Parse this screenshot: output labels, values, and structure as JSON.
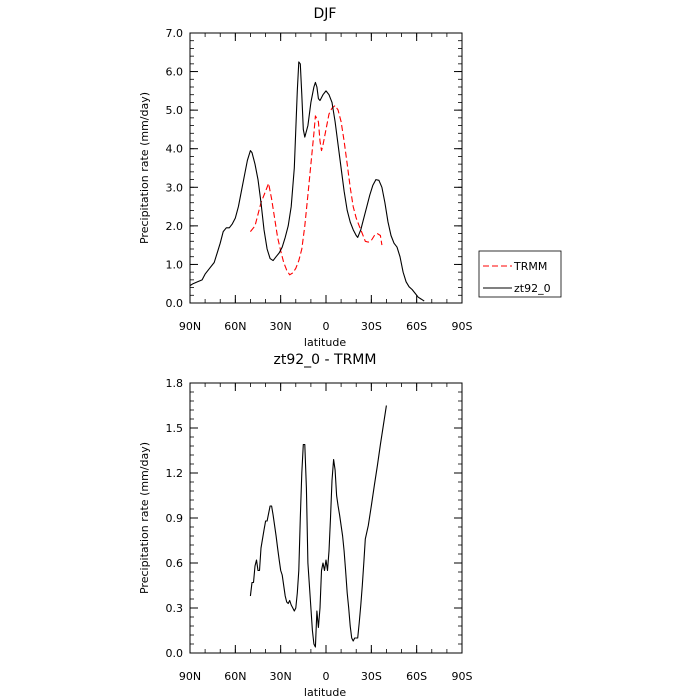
{
  "chart_data": [
    {
      "type": "line",
      "title": "DJF",
      "xlabel": "latitude",
      "ylabel": "Precipitation rate (mm/day)",
      "xlim": [
        90,
        -90
      ],
      "ylim": [
        0,
        7
      ],
      "x_ticks": [
        90,
        60,
        30,
        0,
        -30,
        -60,
        -90
      ],
      "x_tick_labels": [
        "90N",
        "60N",
        "30N",
        "0",
        "30S",
        "60S",
        "90S"
      ],
      "y_ticks": [
        0,
        1,
        2,
        3,
        4,
        5,
        6,
        7
      ],
      "y_tick_labels": [
        "0.0",
        "1.0",
        "2.0",
        "3.0",
        "4.0",
        "5.0",
        "6.0",
        "7.0"
      ],
      "legend": {
        "placement": "right",
        "entries": [
          "TRMM",
          "zt92_0"
        ]
      },
      "series": [
        {
          "name": "TRMM",
          "color": "#ff0000",
          "dash": "dashed",
          "points": [
            [
              50,
              1.85
            ],
            [
              47,
              2.0
            ],
            [
              45,
              2.3
            ],
            [
              43,
              2.6
            ],
            [
              40,
              2.9
            ],
            [
              38,
              3.1
            ],
            [
              36,
              2.7
            ],
            [
              34,
              2.2
            ],
            [
              32,
              1.7
            ],
            [
              30,
              1.35
            ],
            [
              28,
              1.05
            ],
            [
              26,
              0.85
            ],
            [
              24,
              0.73
            ],
            [
              22,
              0.78
            ],
            [
              20,
              0.9
            ],
            [
              18,
              1.1
            ],
            [
              16,
              1.4
            ],
            [
              14,
              2.0
            ],
            [
              12,
              2.8
            ],
            [
              10,
              3.6
            ],
            [
              8,
              4.4
            ],
            [
              7,
              4.85
            ],
            [
              5,
              4.7
            ],
            [
              4,
              4.2
            ],
            [
              3,
              3.95
            ],
            [
              2,
              4.1
            ],
            [
              0,
              4.5
            ],
            [
              -2,
              4.9
            ],
            [
              -4,
              5.05
            ],
            [
              -6,
              5.12
            ],
            [
              -8,
              5.0
            ],
            [
              -10,
              4.7
            ],
            [
              -12,
              4.2
            ],
            [
              -14,
              3.6
            ],
            [
              -16,
              3.0
            ],
            [
              -18,
              2.5
            ],
            [
              -20,
              2.2
            ],
            [
              -22,
              2.0
            ],
            [
              -24,
              1.8
            ],
            [
              -26,
              1.6
            ],
            [
              -28,
              1.58
            ],
            [
              -30,
              1.62
            ],
            [
              -32,
              1.75
            ],
            [
              -34,
              1.8
            ],
            [
              -36,
              1.75
            ],
            [
              -37,
              1.5
            ]
          ]
        },
        {
          "name": "zt92_0",
          "color": "#000000",
          "dash": "solid",
          "points": [
            [
              90,
              0.45
            ],
            [
              88,
              0.5
            ],
            [
              85,
              0.55
            ],
            [
              82,
              0.6
            ],
            [
              80,
              0.75
            ],
            [
              77,
              0.9
            ],
            [
              74,
              1.05
            ],
            [
              72,
              1.3
            ],
            [
              70,
              1.55
            ],
            [
              68,
              1.85
            ],
            [
              66,
              1.95
            ],
            [
              64,
              1.95
            ],
            [
              62,
              2.05
            ],
            [
              60,
              2.2
            ],
            [
              58,
              2.5
            ],
            [
              56,
              2.9
            ],
            [
              54,
              3.3
            ],
            [
              52,
              3.7
            ],
            [
              50,
              3.95
            ],
            [
              49,
              3.9
            ],
            [
              47,
              3.6
            ],
            [
              45,
              3.2
            ],
            [
              43,
              2.6
            ],
            [
              41,
              1.9
            ],
            [
              39,
              1.4
            ],
            [
              37,
              1.15
            ],
            [
              35,
              1.1
            ],
            [
              33,
              1.2
            ],
            [
              31,
              1.3
            ],
            [
              29,
              1.45
            ],
            [
              27,
              1.7
            ],
            [
              25,
              2.0
            ],
            [
              23,
              2.5
            ],
            [
              21,
              3.5
            ],
            [
              20,
              4.5
            ],
            [
              19,
              5.5
            ],
            [
              18,
              6.25
            ],
            [
              17,
              6.2
            ],
            [
              16,
              5.4
            ],
            [
              15,
              4.5
            ],
            [
              14,
              4.3
            ],
            [
              12,
              4.6
            ],
            [
              10,
              5.2
            ],
            [
              8,
              5.6
            ],
            [
              7,
              5.72
            ],
            [
              6,
              5.6
            ],
            [
              5,
              5.3
            ],
            [
              4,
              5.25
            ],
            [
              2,
              5.4
            ],
            [
              0,
              5.5
            ],
            [
              -2,
              5.4
            ],
            [
              -4,
              5.2
            ],
            [
              -6,
              4.7
            ],
            [
              -8,
              4.1
            ],
            [
              -10,
              3.5
            ],
            [
              -12,
              2.9
            ],
            [
              -14,
              2.4
            ],
            [
              -16,
              2.1
            ],
            [
              -18,
              1.9
            ],
            [
              -20,
              1.75
            ],
            [
              -21,
              1.7
            ],
            [
              -23,
              1.9
            ],
            [
              -25,
              2.2
            ],
            [
              -27,
              2.5
            ],
            [
              -29,
              2.8
            ],
            [
              -31,
              3.05
            ],
            [
              -33,
              3.2
            ],
            [
              -35,
              3.18
            ],
            [
              -37,
              3.0
            ],
            [
              -39,
              2.6
            ],
            [
              -41,
              2.1
            ],
            [
              -43,
              1.75
            ],
            [
              -45,
              1.55
            ],
            [
              -47,
              1.45
            ],
            [
              -49,
              1.2
            ],
            [
              -51,
              0.8
            ],
            [
              -53,
              0.55
            ],
            [
              -55,
              0.42
            ],
            [
              -57,
              0.35
            ],
            [
              -59,
              0.25
            ],
            [
              -61,
              0.15
            ],
            [
              -63,
              0.1
            ],
            [
              -65,
              0.05
            ]
          ]
        }
      ]
    },
    {
      "type": "line",
      "title": "zt92_0 - TRMM",
      "xlabel": "latitude",
      "ylabel": "Precipitation rate (mm/day)",
      "xlim": [
        90,
        -90
      ],
      "ylim": [
        0,
        1.8
      ],
      "x_ticks": [
        90,
        60,
        30,
        0,
        -30,
        -60,
        -90
      ],
      "x_tick_labels": [
        "90N",
        "60N",
        "30N",
        "0",
        "30S",
        "60S",
        "90S"
      ],
      "y_ticks": [
        0,
        0.3,
        0.6,
        0.9,
        1.2,
        1.5,
        1.8
      ],
      "y_tick_labels": [
        "0.0",
        "0.3",
        "0.6",
        "0.9",
        "1.2",
        "1.5",
        "1.8"
      ],
      "series": [
        {
          "color": "#000000",
          "dash": "solid",
          "points": [
            [
              50,
              0.38
            ],
            [
              49,
              0.47
            ],
            [
              48,
              0.47
            ],
            [
              47,
              0.58
            ],
            [
              46,
              0.62
            ],
            [
              45,
              0.55
            ],
            [
              44,
              0.55
            ],
            [
              43,
              0.7
            ],
            [
              41,
              0.82
            ],
            [
              40,
              0.88
            ],
            [
              39,
              0.88
            ],
            [
              38,
              0.93
            ],
            [
              37,
              0.98
            ],
            [
              36,
              0.98
            ],
            [
              35,
              0.92
            ],
            [
              34,
              0.85
            ],
            [
              33,
              0.78
            ],
            [
              32,
              0.7
            ],
            [
              31,
              0.62
            ],
            [
              30,
              0.55
            ],
            [
              29,
              0.52
            ],
            [
              28,
              0.45
            ],
            [
              27,
              0.38
            ],
            [
              26,
              0.34
            ],
            [
              25,
              0.33
            ],
            [
              24,
              0.35
            ],
            [
              23,
              0.32
            ],
            [
              22,
              0.3
            ],
            [
              21,
              0.28
            ],
            [
              20,
              0.3
            ],
            [
              19,
              0.4
            ],
            [
              18,
              0.55
            ],
            [
              17,
              0.9
            ],
            [
              16,
              1.2
            ],
            [
              15,
              1.39
            ],
            [
              14,
              1.39
            ],
            [
              13,
              1.1
            ],
            [
              12,
              0.6
            ],
            [
              11,
              0.45
            ],
            [
              10,
              0.3
            ],
            [
              9,
              0.15
            ],
            [
              8,
              0.06
            ],
            [
              7,
              0.04
            ],
            [
              6,
              0.28
            ],
            [
              5,
              0.17
            ],
            [
              4,
              0.3
            ],
            [
              3,
              0.55
            ],
            [
              2,
              0.6
            ],
            [
              1,
              0.55
            ],
            [
              0,
              0.62
            ],
            [
              -1,
              0.55
            ],
            [
              -2,
              0.68
            ],
            [
              -3,
              0.9
            ],
            [
              -4,
              1.15
            ],
            [
              -5,
              1.29
            ],
            [
              -6,
              1.22
            ],
            [
              -7,
              1.05
            ],
            [
              -8,
              0.98
            ],
            [
              -9,
              0.92
            ],
            [
              -10,
              0.85
            ],
            [
              -11,
              0.78
            ],
            [
              -12,
              0.68
            ],
            [
              -13,
              0.55
            ],
            [
              -14,
              0.4
            ],
            [
              -15,
              0.3
            ],
            [
              -16,
              0.18
            ],
            [
              -17,
              0.1
            ],
            [
              -18,
              0.08
            ],
            [
              -19,
              0.1
            ],
            [
              -20,
              0.1
            ],
            [
              -21,
              0.1
            ],
            [
              -22,
              0.2
            ],
            [
              -23,
              0.32
            ],
            [
              -24,
              0.45
            ],
            [
              -25,
              0.6
            ],
            [
              -26,
              0.76
            ],
            [
              -28,
              0.85
            ],
            [
              -30,
              0.98
            ],
            [
              -32,
              1.12
            ],
            [
              -34,
              1.25
            ],
            [
              -36,
              1.39
            ],
            [
              -38,
              1.52
            ],
            [
              -40,
              1.65
            ]
          ]
        }
      ]
    }
  ]
}
